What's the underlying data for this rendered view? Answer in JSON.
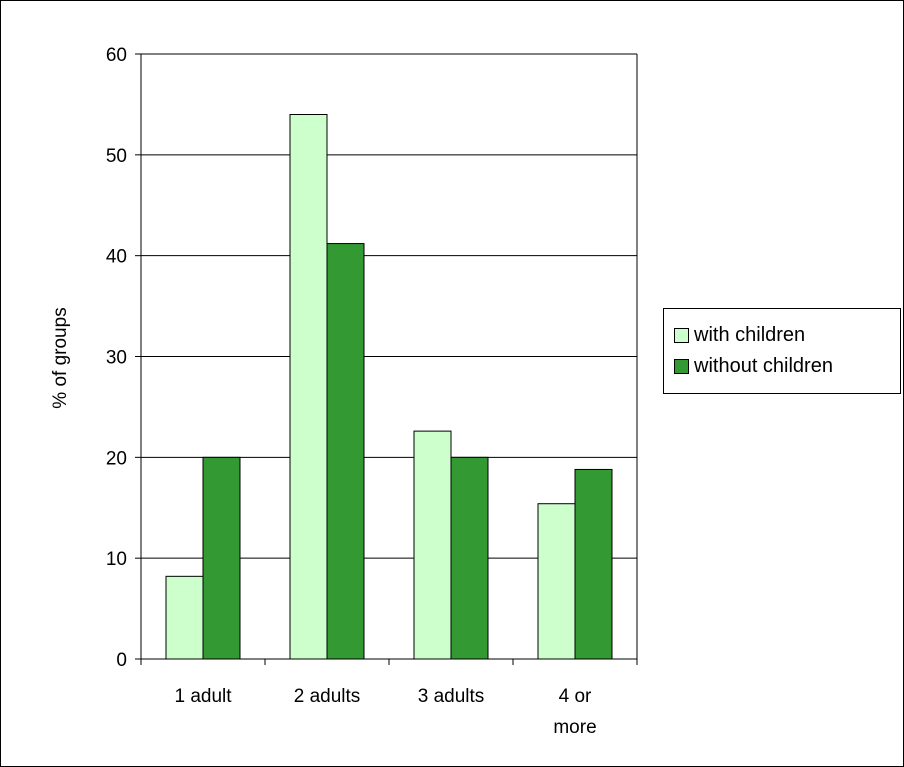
{
  "chart_data": {
    "type": "bar",
    "categories": [
      "1 adult",
      "2 adults",
      "3 adults",
      "4 or more"
    ],
    "category_lines": [
      [
        "1 adult"
      ],
      [
        "2 adults"
      ],
      [
        "3 adults"
      ],
      [
        "4 or",
        "more"
      ]
    ],
    "series": [
      {
        "name": "with children",
        "values": [
          8.2,
          54.0,
          22.6,
          15.4
        ],
        "color": "#ccffcc"
      },
      {
        "name": "without children",
        "values": [
          20.0,
          41.2,
          20.0,
          18.8
        ],
        "color": "#339933"
      }
    ],
    "ylabel": "% of groups",
    "xlabel": "",
    "ylim": [
      0,
      60
    ],
    "yticks": [
      "0",
      "10",
      "20",
      "30",
      "40",
      "50",
      "60"
    ],
    "grid": true,
    "legend_position": "right"
  }
}
